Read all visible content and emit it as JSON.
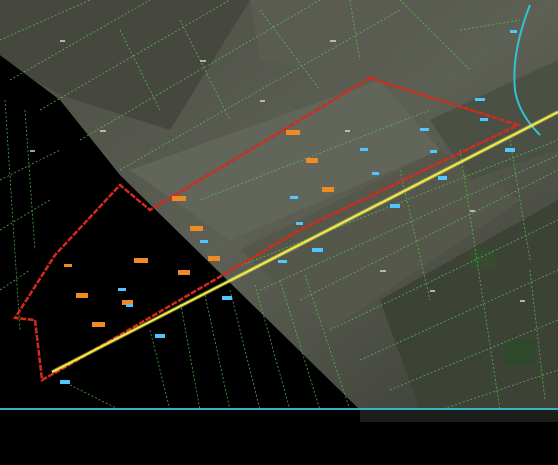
{
  "map": {
    "colors": {
      "background": "#000000",
      "imagery_dark": "#3a3b34",
      "imagery_mid": "#55584c",
      "imagery_light": "#6c6e62",
      "parcel_line": "#55c850",
      "parcel_line_dim": "#3d8a3a",
      "boundary": "#d42a1e",
      "route_line": "#f2ee3a",
      "route_glow": "#fff7a0",
      "river": "#30c4d0",
      "label_orange": "#f08a24",
      "label_cyan": "#4fc6ff",
      "panel_divider": "#3ab0c0",
      "panel_bg": "#000000"
    },
    "layers": [
      "satellite-imagery",
      "cadastral-parcels",
      "project-boundary",
      "route-centerline",
      "river"
    ]
  }
}
